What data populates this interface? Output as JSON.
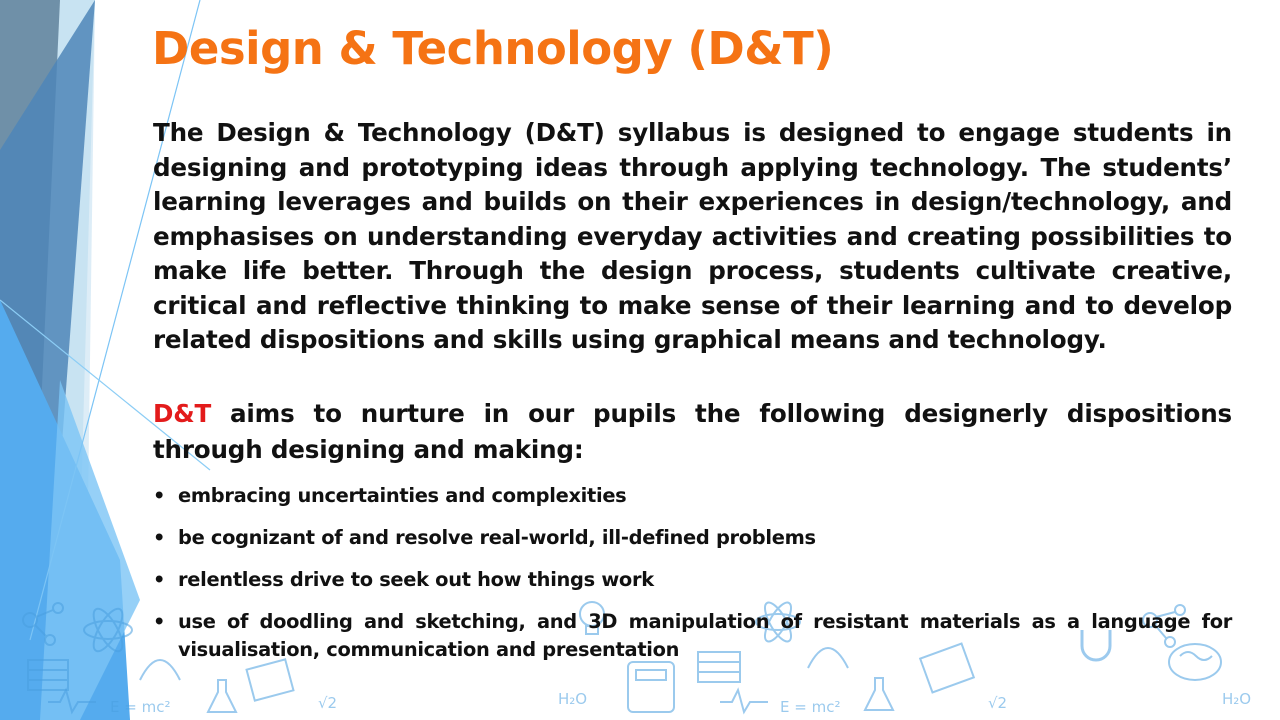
{
  "title": "Design & Technology (D&T)",
  "intro": "The Design & Technology (D&T) syllabus is designed to engage students in designing and prototyping ideas through applying technology. The students’ learning leverages and builds on their experiences in design/technology, and emphasises on understanding everyday activities and creating possibilities to make life better. Through the design process, students cultivate creative, critical and reflective thinking to make sense of their learning and to develop related dispositions and skills using graphical means and technology.",
  "aims": {
    "accent": "D&T",
    "text": " aims to nurture in our pupils the following designerly dispositions through designing and making:"
  },
  "bullets": [
    "embracing uncertainties and complexities",
    "be cognizant of and resolve real-world, ill-defined problems",
    "relentless drive to seek out how things work",
    "use of doodling and sketching, and 3D manipulation of resistant materials as a language for visualisation, communication and presentation"
  ],
  "bullet_symbol": "•",
  "decor_text": {
    "formula": "E = mc²",
    "water": "H₂O",
    "root": "√2"
  },
  "colors": {
    "title": "#F57314",
    "accent": "#E31B1B",
    "body_text": "#111111",
    "decor_blue": "#4A9FE0"
  }
}
